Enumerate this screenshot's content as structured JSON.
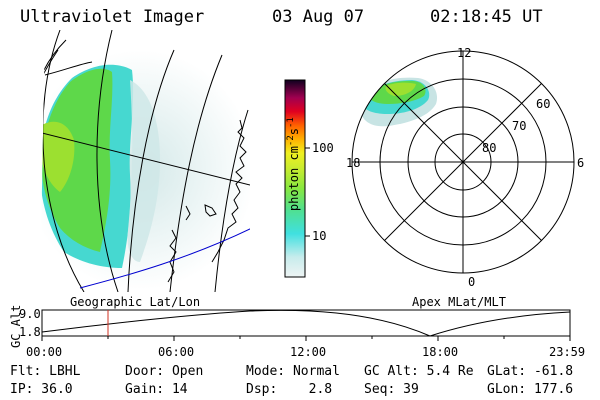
{
  "header": {
    "instrument": "Ultraviolet Imager",
    "date": "03 Aug 07",
    "time": "02:18:45 UT"
  },
  "geo_panel": {
    "label": "Geographic Lat/Lon"
  },
  "colorbar": {
    "unit_label": "photon cm",
    "unit_sup1": "-2",
    "unit_mid": "s",
    "unit_sup2": "-1",
    "ticks": [
      "100",
      "10"
    ],
    "scale": "log",
    "colors": [
      "#e8f0f0",
      "#c0e8e8",
      "#40e0e0",
      "#60e8a0",
      "#90e840",
      "#c8ec30",
      "#f0f020",
      "#ffb000",
      "#ff6000",
      "#e00020",
      "#a00040",
      "#500050",
      "#100020"
    ]
  },
  "polar_panel": {
    "label": "Apex MLat/MLT",
    "mlt_labels": {
      "top": "12",
      "left": "18",
      "right": "6",
      "bottom": "0"
    },
    "lat_labels": [
      "80",
      "70",
      "60"
    ]
  },
  "altitude_strip": {
    "ylabel": "GC Alt",
    "y_ticks": [
      "9.0",
      "1.8"
    ],
    "x_ticks": [
      "00:00",
      "06:00",
      "12:00",
      "18:00",
      "23:59"
    ],
    "marker_time": "02:18"
  },
  "status": {
    "flt": "Flt: LBHL",
    "ip": "IP: 36.0",
    "door": "Door: Open",
    "gain": "Gain: 14",
    "mode": "Mode: Normal",
    "dsp": "Dsp:    2.8",
    "gc_alt": "GC Alt: 5.4 Re",
    "seq": "Seq: 39",
    "glat": "GLat: -61.8",
    "glon": "GLon: 177.6"
  },
  "colors": {
    "aurora_green": "#5ed84a",
    "aurora_lime": "#9ce030",
    "aurora_cyan": "#46d8d0",
    "haze": "#c8e4e4",
    "coast": "#0000d0",
    "marker": "#d03020"
  }
}
